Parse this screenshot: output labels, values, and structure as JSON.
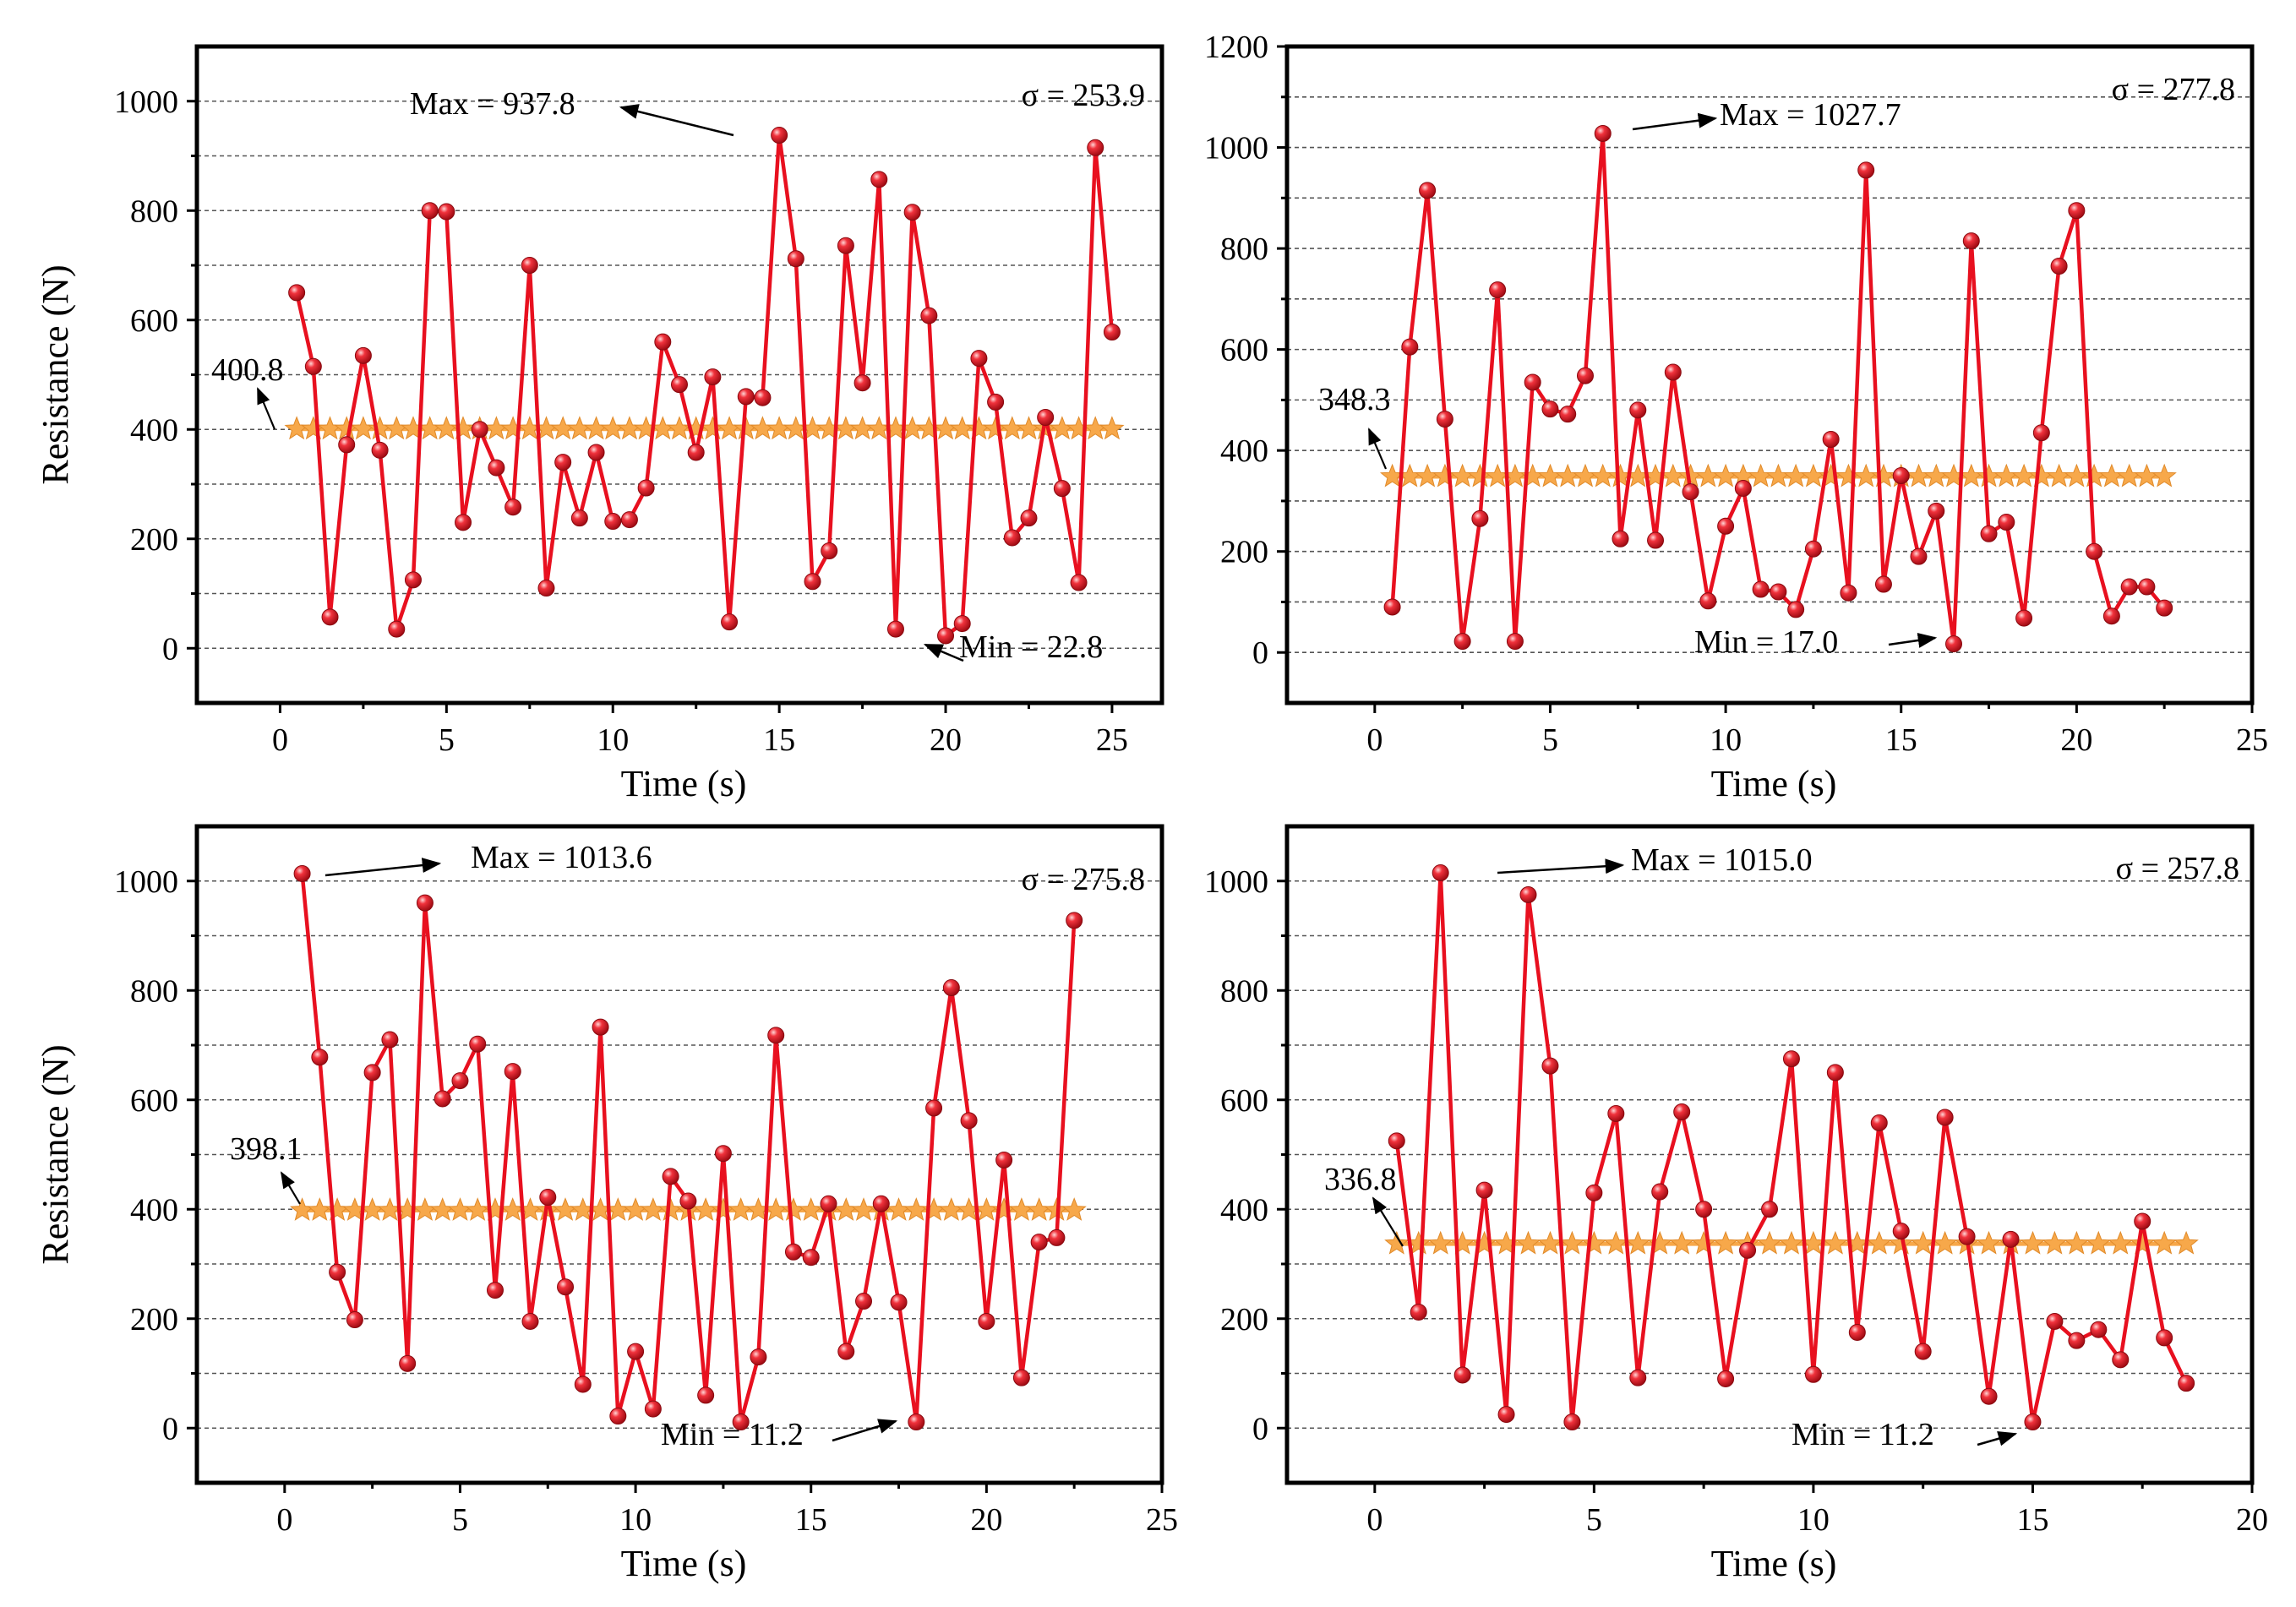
{
  "figure": {
    "title": ""
  },
  "chart_data": [
    {
      "type": "line",
      "panel": "top-left",
      "xlabel": "Time (s)",
      "ylabel": "Resistance (N)",
      "xlim": [
        -2.5,
        26.5
      ],
      "ylim": [
        -100,
        1100
      ],
      "xticks": [
        0,
        5,
        10,
        15,
        20,
        25
      ],
      "yticks": [
        0,
        200,
        400,
        600,
        800,
        1000
      ],
      "grid": true,
      "series": [
        {
          "name": "Resistance",
          "x": [
            0.5,
            1,
            1.5,
            2,
            2.5,
            3,
            3.5,
            4,
            4.5,
            5,
            5.5,
            6,
            6.5,
            7,
            7.5,
            8,
            8.5,
            9,
            9.5,
            10,
            10.5,
            11,
            11.5,
            12,
            12.5,
            13,
            13.5,
            14,
            14.5,
            15,
            15.5,
            16,
            16.5,
            17,
            17.5,
            18,
            18.5,
            19,
            19.5,
            20,
            20.5,
            21,
            21.5,
            22,
            22.5,
            23,
            23.5,
            24,
            24.5,
            25
          ],
          "y": [
            650,
            515,
            57,
            372,
            535,
            362,
            35,
            125,
            800,
            798,
            230,
            400,
            330,
            258,
            700,
            110,
            340,
            238,
            358,
            232,
            235,
            293,
            560,
            482,
            358,
            496,
            48,
            460,
            458,
            937.8,
            712,
            122,
            178,
            736,
            485,
            857,
            35,
            797,
            608,
            22.8,
            45,
            530,
            450,
            202,
            238,
            422,
            292,
            120,
            915,
            578
          ]
        }
      ],
      "mean": {
        "value": 400.8,
        "label": "400.8",
        "x_start": 0.5,
        "x_end": 25,
        "star_step": 0.5
      },
      "annotations": {
        "max": "Max = 937.8",
        "min": "Min = 22.8",
        "sigma": "σ = 253.9"
      }
    },
    {
      "type": "line",
      "panel": "top-right",
      "xlabel": "Time (s)",
      "ylabel": "",
      "xlim": [
        -2.5,
        25
      ],
      "ylim": [
        -100,
        1200
      ],
      "xticks": [
        0,
        5,
        10,
        15,
        20,
        25
      ],
      "yticks": [
        0,
        200,
        400,
        600,
        800,
        1000,
        1200
      ],
      "grid": true,
      "series": [
        {
          "name": "Resistance",
          "x": [
            0.5,
            1,
            1.5,
            2,
            2.5,
            3,
            3.5,
            4,
            4.5,
            5,
            5.5,
            6,
            6.5,
            7,
            7.5,
            8,
            8.5,
            9,
            9.5,
            10,
            10.5,
            11,
            11.5,
            12,
            12.5,
            13,
            13.5,
            14,
            14.5,
            15,
            15.5,
            16,
            16.5,
            17,
            17.5,
            18,
            18.5,
            19,
            19.5,
            20,
            20.5,
            21,
            21.5,
            22,
            22.5
          ],
          "y": [
            90,
            605,
            915,
            462,
            22,
            265,
            718,
            22,
            535,
            482,
            472,
            548,
            1027.7,
            225,
            480,
            222,
            555,
            318,
            102,
            250,
            325,
            125,
            120,
            85,
            205,
            422,
            118,
            955,
            135,
            350,
            190,
            280,
            17.0,
            815,
            235,
            258,
            68,
            435,
            765,
            875,
            200,
            72,
            130,
            130,
            88
          ]
        }
      ],
      "mean": {
        "value": 348.3,
        "label": "348.3",
        "x_start": 0.5,
        "x_end": 22.5,
        "star_step": 0.5
      },
      "annotations": {
        "max": "Max = 1027.7",
        "min": "Min = 17.0",
        "sigma": "σ = 277.8"
      }
    },
    {
      "type": "line",
      "panel": "bottom-left",
      "xlabel": "Time (s)",
      "ylabel": "Resistance (N)",
      "xlim": [
        -2.5,
        25
      ],
      "ylim": [
        -100,
        1100
      ],
      "xticks": [
        0,
        5,
        10,
        15,
        20,
        25
      ],
      "yticks": [
        0,
        200,
        400,
        600,
        800,
        1000
      ],
      "grid": true,
      "series": [
        {
          "name": "Resistance",
          "x": [
            0.5,
            1,
            1.5,
            2,
            2.5,
            3,
            3.5,
            4,
            4.5,
            5,
            5.5,
            6,
            6.5,
            7,
            7.5,
            8,
            8.5,
            9,
            9.5,
            10,
            10.5,
            11,
            11.5,
            12,
            12.5,
            13,
            13.5,
            14,
            14.5,
            15,
            15.5,
            16,
            16.5,
            17,
            17.5,
            18,
            18.5,
            19,
            19.5,
            20,
            20.5,
            21,
            21.5,
            22,
            22.5
          ],
          "y": [
            1013.6,
            678,
            285,
            198,
            650,
            710,
            118,
            960,
            602,
            635,
            702,
            252,
            652,
            195,
            422,
            258,
            80,
            733,
            22,
            140,
            35,
            460,
            415,
            60,
            502,
            11.2,
            130,
            718,
            322,
            312,
            410,
            140,
            232,
            410,
            230,
            11.2,
            585,
            805,
            562,
            195,
            490,
            92,
            340,
            348,
            928
          ]
        }
      ],
      "mean": {
        "value": 398.1,
        "label": "398.1",
        "x_start": 0.5,
        "x_end": 22.5,
        "star_step": 0.5
      },
      "annotations": {
        "max": "Max = 1013.6",
        "min": "Min = 11.2",
        "sigma": "σ = 275.8"
      }
    },
    {
      "type": "line",
      "panel": "bottom-right",
      "xlabel": "Time (s)",
      "ylabel": "",
      "xlim": [
        -2,
        20
      ],
      "ylim": [
        -100,
        1100
      ],
      "xticks": [
        0,
        5,
        10,
        15,
        20
      ],
      "yticks": [
        0,
        200,
        400,
        600,
        800,
        1000
      ],
      "grid": true,
      "series": [
        {
          "name": "Resistance",
          "x": [
            0.5,
            1,
            1.5,
            2,
            2.5,
            3,
            3.5,
            4,
            4.5,
            5,
            5.5,
            6,
            6.5,
            7,
            7.5,
            8,
            8.5,
            9,
            9.5,
            10,
            10.5,
            11,
            11.5,
            12,
            12.5,
            13,
            13.5,
            14,
            14.5,
            15,
            15.5,
            16,
            16.5,
            17,
            17.5,
            18,
            18.5
          ],
          "y": [
            525,
            212,
            1015.0,
            97,
            435,
            25,
            975,
            662,
            11.2,
            430,
            575,
            92,
            432,
            578,
            400,
            90,
            325,
            400,
            675,
            98,
            650,
            175,
            558,
            360,
            140,
            568,
            350,
            58,
            345,
            11.2,
            195,
            160,
            180,
            125,
            378,
            165,
            82
          ]
        }
      ],
      "mean": {
        "value": 336.8,
        "label": "336.8",
        "x_start": 0.5,
        "x_end": 18.5,
        "star_step": 0.5
      },
      "annotations": {
        "max": "Max = 1015.0",
        "min": "Min = 11.2",
        "sigma": "σ = 257.8"
      }
    }
  ]
}
